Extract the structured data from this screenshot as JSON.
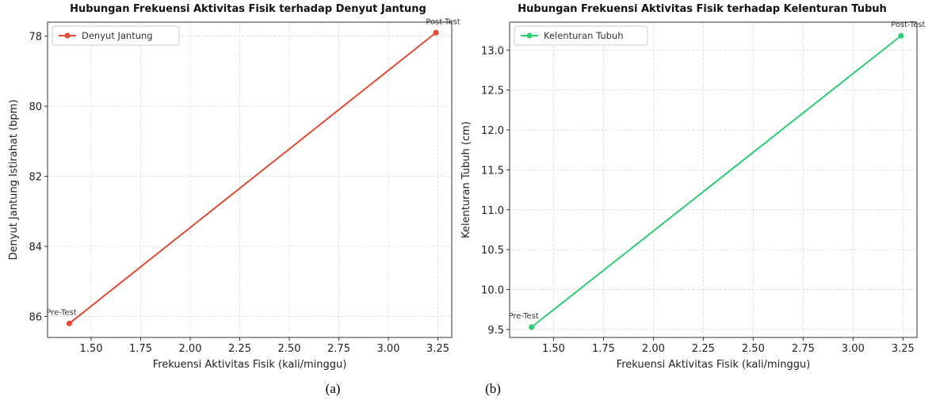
{
  "chart_data": [
    {
      "type": "line",
      "title": "Hubungan Frekuensi Aktivitas Fisik terhadap Denyut Jantung",
      "xlabel": "Frekuensi Aktivitas Fisik (kali/minggu)",
      "ylabel": "Denyut Jantung Istirahat (bpm)",
      "xlim": [
        1.28,
        3.32
      ],
      "ylim": [
        86.6,
        77.6
      ],
      "y_inverted": true,
      "xticks": [
        1.5,
        1.75,
        2.0,
        2.25,
        2.5,
        2.75,
        3.0,
        3.25
      ],
      "xtick_labels": [
        "1.50",
        "1.75",
        "2.00",
        "2.25",
        "2.50",
        "2.75",
        "3.00",
        "3.25"
      ],
      "yticks": [
        78,
        80,
        82,
        84,
        86
      ],
      "ytick_labels": [
        "78",
        "80",
        "82",
        "84",
        "86"
      ],
      "grid": true,
      "legend_position": "upper-left",
      "color": "#e24a33",
      "series": [
        {
          "name": "Denyut Jantung",
          "x": [
            1.39,
            3.24
          ],
          "y": [
            86.2,
            77.9
          ]
        }
      ],
      "annotations": [
        {
          "text": "Pre-Test",
          "x": 1.39,
          "y": 86.2
        },
        {
          "text": "Post-Test",
          "x": 3.24,
          "y": 77.9
        }
      ],
      "caption": "(a)"
    },
    {
      "type": "line",
      "title": "Hubungan Frekuensi Aktivitas Fisik terhadap Kelenturan Tubuh",
      "xlabel": "Frekuensi Aktivitas Fisik (kali/minggu)",
      "ylabel": "Kelenturan Tubuh (cm)",
      "xlim": [
        1.28,
        3.32
      ],
      "ylim": [
        9.4,
        13.35
      ],
      "y_inverted": false,
      "xticks": [
        1.5,
        1.75,
        2.0,
        2.25,
        2.5,
        2.75,
        3.0,
        3.25
      ],
      "xtick_labels": [
        "1.50",
        "1.75",
        "2.00",
        "2.25",
        "2.50",
        "2.75",
        "3.00",
        "3.25"
      ],
      "yticks": [
        9.5,
        10.0,
        10.5,
        11.0,
        11.5,
        12.0,
        12.5,
        13.0
      ],
      "ytick_labels": [
        "9.5",
        "10.0",
        "10.5",
        "11.0",
        "11.5",
        "12.0",
        "12.5",
        "13.0"
      ],
      "grid": true,
      "legend_position": "upper-left",
      "color": "#2ecc71",
      "series": [
        {
          "name": "Kelenturan Tubuh",
          "x": [
            1.39,
            3.24
          ],
          "y": [
            9.53,
            13.18
          ]
        }
      ],
      "annotations": [
        {
          "text": "Pre-Test",
          "x": 1.39,
          "y": 9.53
        },
        {
          "text": "Post-Test",
          "x": 3.24,
          "y": 13.18
        }
      ],
      "caption": "(b)"
    }
  ]
}
